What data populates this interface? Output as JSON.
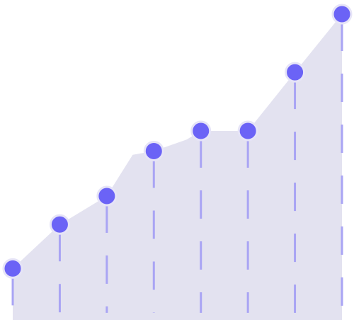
{
  "chart_data": {
    "type": "area",
    "title": "",
    "xlabel": "",
    "ylabel": "",
    "grid": false,
    "legend": "none",
    "ylim": [
      0,
      100
    ],
    "series": [
      {
        "points": [
          {
            "x": 0,
            "y": 16.8,
            "marker": true
          },
          {
            "x": 1,
            "y": 31.2,
            "marker": true
          },
          {
            "x": 2,
            "y": 40.5,
            "marker": true
          },
          {
            "x": 2.55,
            "y": 54.0,
            "marker": false
          },
          {
            "x": 3,
            "y": 55.2,
            "marker": true
          },
          {
            "x": 3.7,
            "y": 59.0,
            "marker": false
          },
          {
            "x": 4,
            "y": 61.8,
            "marker": true
          },
          {
            "x": 5,
            "y": 61.8,
            "marker": true
          },
          {
            "x": 6,
            "y": 81.0,
            "marker": true
          },
          {
            "x": 7,
            "y": 100.0,
            "marker": true
          }
        ]
      }
    ]
  },
  "colors": {
    "area_fill": "#e3e2f0",
    "marker_fill": "#6b63f6",
    "marker_stroke": "#e6e4f7",
    "dash_stroke": "#a9a4f4"
  }
}
